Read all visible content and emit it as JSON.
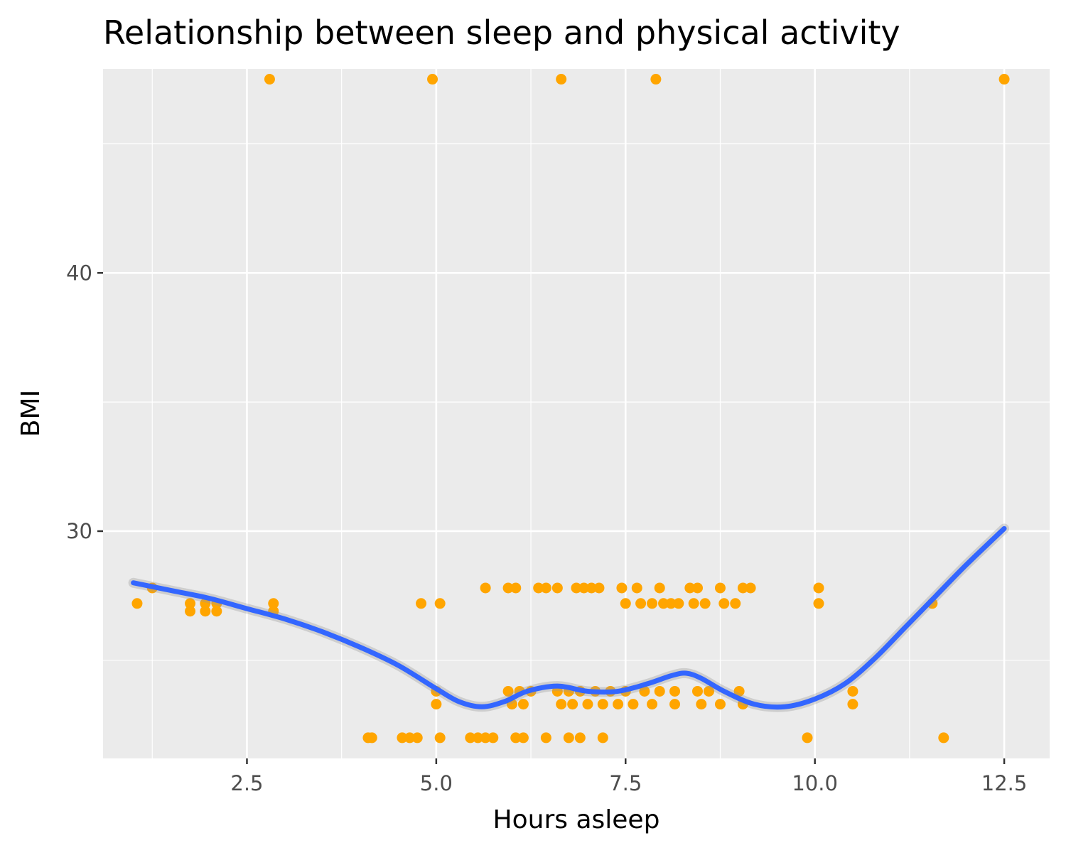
{
  "chart_data": {
    "type": "scatter",
    "title": "Relationship between sleep and physical activity",
    "xlabel": "Hours asleep",
    "ylabel": "BMI",
    "xlim": [
      0.6,
      13.1
    ],
    "ylim": [
      21.2,
      47.9
    ],
    "x_ticks": [
      2.5,
      5.0,
      7.5,
      10.0,
      12.5
    ],
    "x_tick_labels": [
      "2.5",
      "5.0",
      "7.5",
      "10.0",
      "12.5"
    ],
    "y_ticks": [
      30,
      40
    ],
    "y_tick_labels": [
      "30",
      "40"
    ],
    "grid": true,
    "point_color": "#FFA500",
    "smooth_color": "#3366FF",
    "series": [
      {
        "points": [
          [
            2.8,
            47.5
          ],
          [
            4.95,
            47.5
          ],
          [
            6.65,
            47.5
          ],
          [
            7.9,
            47.5
          ],
          [
            12.5,
            47.5
          ],
          [
            1.05,
            27.2
          ],
          [
            1.25,
            27.8
          ],
          [
            1.75,
            27.2
          ],
          [
            1.75,
            26.9
          ],
          [
            1.95,
            27.2
          ],
          [
            1.95,
            26.9
          ],
          [
            2.1,
            27.2
          ],
          [
            2.1,
            26.9
          ],
          [
            2.85,
            27.2
          ],
          [
            2.85,
            26.9
          ],
          [
            4.1,
            22.0
          ],
          [
            4.15,
            22.0
          ],
          [
            4.55,
            22.0
          ],
          [
            4.65,
            22.0
          ],
          [
            4.75,
            22.0
          ],
          [
            4.8,
            27.2
          ],
          [
            5.0,
            23.8
          ],
          [
            5.0,
            23.3
          ],
          [
            5.05,
            27.2
          ],
          [
            5.05,
            22.0
          ],
          [
            5.45,
            22.0
          ],
          [
            5.55,
            22.0
          ],
          [
            5.65,
            22.0
          ],
          [
            5.75,
            22.0
          ],
          [
            5.65,
            27.8
          ],
          [
            5.95,
            27.8
          ],
          [
            6.05,
            27.8
          ],
          [
            5.95,
            23.8
          ],
          [
            6.0,
            23.3
          ],
          [
            6.1,
            23.8
          ],
          [
            6.15,
            23.3
          ],
          [
            6.25,
            23.8
          ],
          [
            6.05,
            22.0
          ],
          [
            6.15,
            22.0
          ],
          [
            6.45,
            22.0
          ],
          [
            6.35,
            27.8
          ],
          [
            6.45,
            27.8
          ],
          [
            6.6,
            27.8
          ],
          [
            6.6,
            23.8
          ],
          [
            6.65,
            23.3
          ],
          [
            6.75,
            23.8
          ],
          [
            6.8,
            23.3
          ],
          [
            6.75,
            22.0
          ],
          [
            6.9,
            22.0
          ],
          [
            6.85,
            27.8
          ],
          [
            6.95,
            27.8
          ],
          [
            7.05,
            27.8
          ],
          [
            7.15,
            27.8
          ],
          [
            6.9,
            23.8
          ],
          [
            7.0,
            23.3
          ],
          [
            7.1,
            23.8
          ],
          [
            7.2,
            23.3
          ],
          [
            7.3,
            23.8
          ],
          [
            7.4,
            23.3
          ],
          [
            7.5,
            23.8
          ],
          [
            7.6,
            23.3
          ],
          [
            7.2,
            22.0
          ],
          [
            7.45,
            27.8
          ],
          [
            7.65,
            27.8
          ],
          [
            7.5,
            27.2
          ],
          [
            7.7,
            27.2
          ],
          [
            7.85,
            27.2
          ],
          [
            7.75,
            23.8
          ],
          [
            7.85,
            23.3
          ],
          [
            7.95,
            23.8
          ],
          [
            7.95,
            27.8
          ],
          [
            8.0,
            27.2
          ],
          [
            8.1,
            27.2
          ],
          [
            8.2,
            27.2
          ],
          [
            8.15,
            23.8
          ],
          [
            8.15,
            23.3
          ],
          [
            8.35,
            27.8
          ],
          [
            8.45,
            27.8
          ],
          [
            8.4,
            27.2
          ],
          [
            8.55,
            27.2
          ],
          [
            8.45,
            23.8
          ],
          [
            8.5,
            23.3
          ],
          [
            8.6,
            23.8
          ],
          [
            8.75,
            23.3
          ],
          [
            8.75,
            27.8
          ],
          [
            8.8,
            27.2
          ],
          [
            8.95,
            27.2
          ],
          [
            9.0,
            23.8
          ],
          [
            9.05,
            23.3
          ],
          [
            9.05,
            27.8
          ],
          [
            9.15,
            27.8
          ],
          [
            9.9,
            22.0
          ],
          [
            10.05,
            27.8
          ],
          [
            10.05,
            27.2
          ],
          [
            10.5,
            23.8
          ],
          [
            10.5,
            23.3
          ],
          [
            11.55,
            27.2
          ],
          [
            11.7,
            22.0
          ]
        ]
      }
    ],
    "smooth": {
      "x": [
        1.0,
        1.5,
        2.0,
        2.5,
        3.0,
        3.5,
        4.0,
        4.5,
        5.0,
        5.3,
        5.6,
        5.9,
        6.2,
        6.6,
        7.0,
        7.4,
        7.8,
        8.1,
        8.3,
        8.5,
        8.8,
        9.2,
        9.6,
        10.0,
        10.4,
        10.8,
        11.2,
        11.6,
        12.0,
        12.5
      ],
      "y": [
        28.0,
        27.7,
        27.4,
        27.0,
        26.6,
        26.1,
        25.5,
        24.8,
        23.9,
        23.4,
        23.2,
        23.4,
        23.8,
        24.0,
        23.8,
        23.8,
        24.1,
        24.4,
        24.5,
        24.3,
        23.8,
        23.3,
        23.2,
        23.5,
        24.1,
        25.1,
        26.3,
        27.5,
        28.7,
        30.1
      ]
    }
  }
}
